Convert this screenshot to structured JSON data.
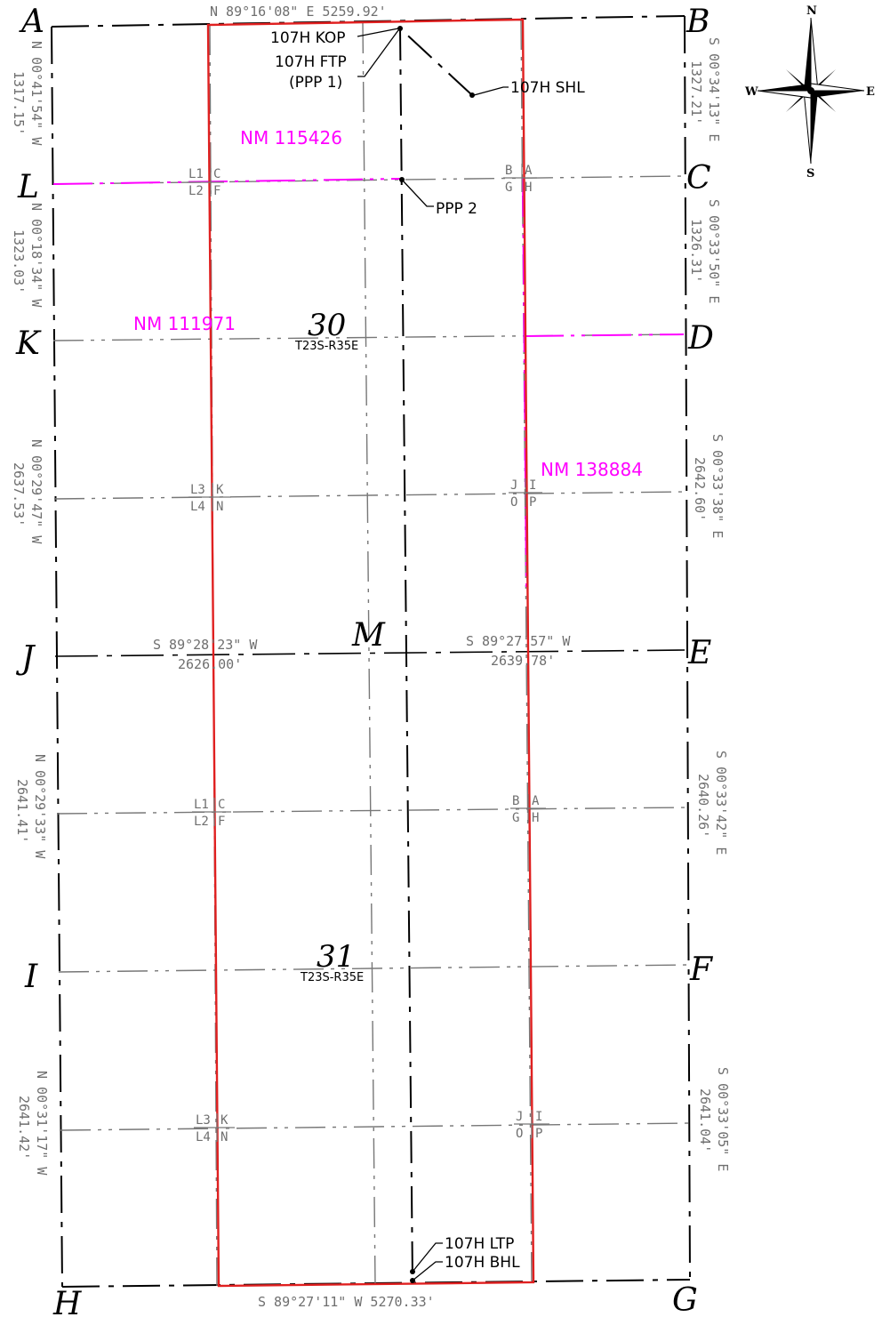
{
  "corners": {
    "A": "A",
    "B": "B",
    "C": "C",
    "D": "D",
    "E": "E",
    "F": "F",
    "G": "G",
    "H": "H",
    "I": "I",
    "J": "J",
    "K": "K",
    "L": "L",
    "M": "M"
  },
  "sections": [
    {
      "number": "30",
      "township": "T23S-R35E"
    },
    {
      "number": "31",
      "township": "T23S-R35E"
    }
  ],
  "bearings": {
    "north_line": "N 89°16'08\" E  5259.92'",
    "south_line": "S 89°27'11\" W  5270.33'",
    "mid_west_bearing": "S 89°28'23\" W",
    "mid_west_distance": "2626.00'",
    "mid_east_bearing": "S 89°27'57\" W",
    "mid_east_distance": "2639.78'",
    "west_1_bearing": "N 00°41'54\" W",
    "west_1_distance": "1317.15'",
    "west_2_bearing": "N 00°18'34\" W",
    "west_2_distance": "1323.03'",
    "west_3_bearing": "N 00°29'47\" W",
    "west_3_distance": "2637.53'",
    "west_4_bearing": "N 00°29'33\" W",
    "west_4_distance": "2641.41'",
    "west_5_bearing": "N 00°31'17\" W",
    "west_5_distance": "2641.42'",
    "east_1_bearing": "S 00°34'13\" E",
    "east_1_distance": "1327.21'",
    "east_2_bearing": "S 00°33'50\" E",
    "east_2_distance": "1326.31'",
    "east_3_bearing": "S 00°33'38\" E",
    "east_3_distance": "2642.60'",
    "east_4_bearing": "S 00°33'42\" E",
    "east_4_distance": "2640.26'",
    "east_5_bearing": "S 00°33'05\" E",
    "east_5_distance": "2641.04'"
  },
  "leases": {
    "nm_115426": "NM 115426",
    "nm_111971": "NM 111971",
    "nm_138884": "NM 138884"
  },
  "well_points": {
    "kop": "107H KOP",
    "ftp": "107H FTP",
    "ppp1": "(PPP 1)",
    "shl": "107H SHL",
    "ppp2": "PPP 2",
    "ltp": "107H LTP",
    "bhl": "107H BHL"
  },
  "quarter_labels": {
    "L1": "L1",
    "L2": "L2",
    "L3": "L3",
    "L4": "L4",
    "A": "A",
    "B": "B",
    "C": "C",
    "F": "F",
    "G": "G",
    "H": "H",
    "I": "I",
    "J": "J",
    "K": "K",
    "N": "N",
    "O": "O",
    "P": "P"
  },
  "compass": {
    "n": "N",
    "s": "S",
    "e": "E",
    "w": "W"
  },
  "colors": {
    "tract": "#e02020",
    "lease": "#ff00ff",
    "text_gray": "#6f6f6f"
  }
}
